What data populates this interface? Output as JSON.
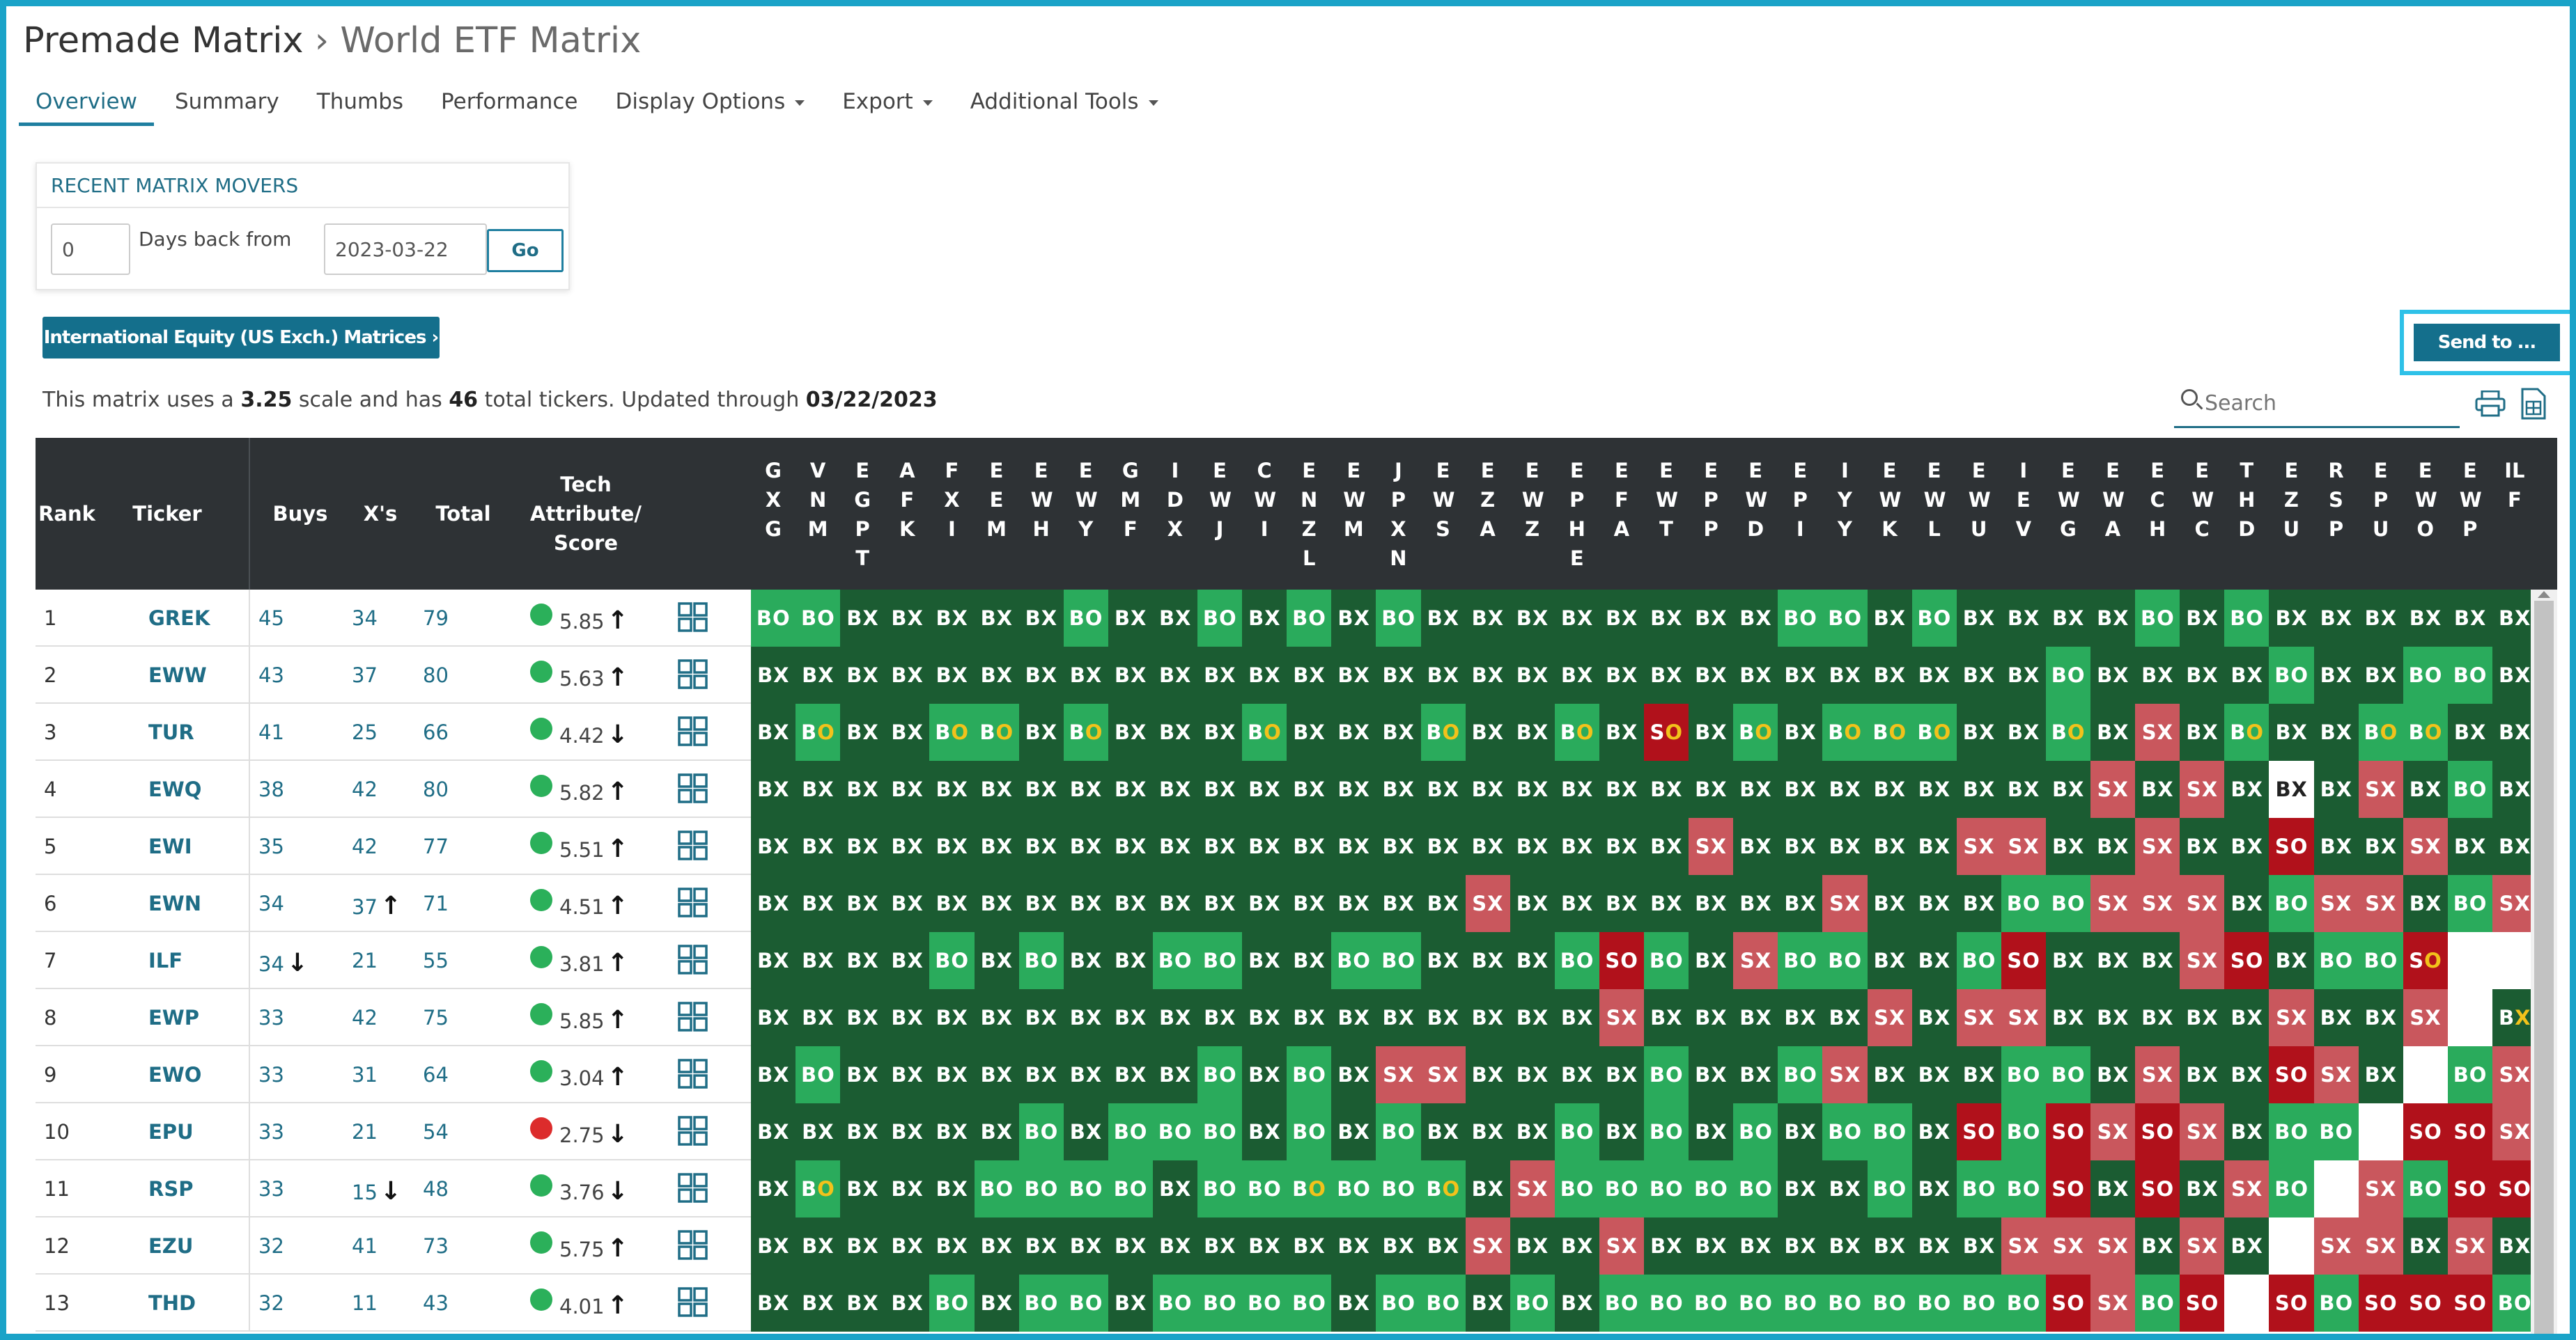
{
  "breadcrumb": {
    "parent": "Premade Matrix",
    "sep": "›",
    "current": "World ETF Matrix"
  },
  "tabs": [
    {
      "label": "Overview",
      "active": true,
      "dropdown": false
    },
    {
      "label": "Summary",
      "active": false,
      "dropdown": false
    },
    {
      "label": "Thumbs",
      "active": false,
      "dropdown": false
    },
    {
      "label": "Performance",
      "active": false,
      "dropdown": false
    },
    {
      "label": "Display Options",
      "active": false,
      "dropdown": true
    },
    {
      "label": "Export",
      "active": false,
      "dropdown": true
    },
    {
      "label": "Additional Tools",
      "active": false,
      "dropdown": true
    }
  ],
  "movers": {
    "title": "RECENT MATRIX MOVERS",
    "days_value": "0",
    "days_label": "Days back from",
    "date_value": "2023-03-22",
    "go_label": "Go"
  },
  "intl_button": "International Equity (US Exch.) Matrices ›",
  "send_button": "Send to ...",
  "info": {
    "p1": "This matrix uses a ",
    "scale": "3.25",
    "p2": " scale and has ",
    "tickers": "46",
    "p3": " total tickers. Updated through ",
    "date": "03/22/2023"
  },
  "search_placeholder": "Search",
  "headers": {
    "rank": "Rank",
    "ticker": "Ticker",
    "buys": "Buys",
    "xs": "X's",
    "total": "Total",
    "tech": "Tech Attribute/ Score"
  },
  "colors": {
    "BX": "#1b5c32",
    "BO": "#2aab5c",
    "SX": "#c9575d",
    "SO": "#b1111b",
    "EMPTY": "#ffffff",
    "up_dot": "#2bb05a",
    "down_dot": "#dc2c2c",
    "header_bg": "#2e3235",
    "accent": "#1f6d86"
  },
  "columns": [
    "GXG",
    "VNM",
    "EGPT",
    "AFK",
    "FXI",
    "EEM",
    "EWH",
    "EWY",
    "GMF",
    "IDX",
    "EWJ",
    "CWI",
    "ENZL",
    "EWM",
    "JPXN",
    "EWS",
    "EZA",
    "EWZ",
    "EPHE",
    "EFA",
    "EWT",
    "EPP",
    "EWD",
    "EPI",
    "IYY",
    "EWK",
    "EWL",
    "EWU",
    "IEV",
    "EWG",
    "EWA",
    "ECH",
    "EWC",
    "THD",
    "EZU",
    "RSP",
    "EPU",
    "EWO",
    "EWP",
    "ILF"
  ],
  "rows": [
    {
      "rank": "1",
      "ticker": "GREK",
      "buys": "45",
      "buys_arrow": "",
      "xs": "34",
      "xs_arrow": "",
      "total": "79",
      "dot": "up_dot",
      "score": "5.85",
      "score_arrow": "up",
      "cells": [
        "BO",
        "BO",
        "BX",
        "BX",
        "BX",
        "BX",
        "BX",
        "BO",
        "BX",
        "BX",
        "BO",
        "BX",
        "BO",
        "BX",
        "BO",
        "BX",
        "BX",
        "BX",
        "BX",
        "BX",
        "BX",
        "BX",
        "BX",
        "BO",
        "BO",
        "BX",
        "BO",
        "BX",
        "BX",
        "BX",
        "BX",
        "BO",
        "BX",
        "BO",
        "BX",
        "BX",
        "BX",
        "BX",
        "BX",
        "BX"
      ]
    },
    {
      "rank": "2",
      "ticker": "EWW",
      "buys": "43",
      "buys_arrow": "",
      "xs": "37",
      "xs_arrow": "",
      "total": "80",
      "dot": "up_dot",
      "score": "5.63",
      "score_arrow": "up",
      "cells": [
        "BX",
        "BX",
        "BX",
        "BX",
        "BX",
        "BX",
        "BX",
        "BX",
        "BX",
        "BX",
        "BX",
        "BX",
        "BX",
        "BX",
        "BX",
        "BX",
        "BX",
        "BX",
        "BX",
        "BX",
        "BX",
        "BX",
        "BX",
        "BX",
        "BX",
        "BX",
        "BX",
        "BX",
        "BX",
        "BO",
        "BX",
        "BX",
        "BX",
        "BX",
        "BO",
        "BX",
        "BX",
        "BO",
        "BO",
        "BX"
      ]
    },
    {
      "rank": "3",
      "ticker": "TUR",
      "buys": "41",
      "buys_arrow": "",
      "xs": "25",
      "xs_arrow": "",
      "total": "66",
      "dot": "up_dot",
      "score": "4.42",
      "score_arrow": "down",
      "cells": [
        "BX",
        "BO",
        "BX",
        "BX",
        "BO",
        "BO",
        "BX",
        "BO",
        "BX",
        "BX",
        "BX",
        "BO",
        "BX",
        "BX",
        "BX",
        "BO",
        "BX",
        "BX",
        "BO",
        "BX",
        "SO",
        "BX",
        "BO",
        "BX",
        "BO",
        "BO",
        "BO",
        "BX",
        "BX",
        "BO",
        "BX",
        "SX",
        "BX",
        "BO",
        "BX",
        "BX",
        "BO",
        "BO",
        "BX",
        "BX"
      ]
    },
    {
      "rank": "4",
      "ticker": "EWQ",
      "buys": "38",
      "buys_arrow": "",
      "xs": "42",
      "xs_arrow": "",
      "total": "80",
      "dot": "up_dot",
      "score": "5.82",
      "score_arrow": "up",
      "cells": [
        "BX",
        "BX",
        "BX",
        "BX",
        "BX",
        "BX",
        "BX",
        "BX",
        "BX",
        "BX",
        "BX",
        "BX",
        "BX",
        "BX",
        "BX",
        "BX",
        "BX",
        "BX",
        "BX",
        "BX",
        "BX",
        "BX",
        "BX",
        "BX",
        "BX",
        "BX",
        "BX",
        "BX",
        "BX",
        "BX",
        "SX",
        "BX",
        "SX",
        "BX",
        "EMPTY",
        "BX",
        "SX",
        "BX",
        "BO",
        "BX"
      ]
    },
    {
      "rank": "5",
      "ticker": "EWI",
      "buys": "35",
      "buys_arrow": "",
      "xs": "42",
      "xs_arrow": "",
      "total": "77",
      "dot": "up_dot",
      "score": "5.51",
      "score_arrow": "up",
      "cells": [
        "BX",
        "BX",
        "BX",
        "BX",
        "BX",
        "BX",
        "BX",
        "BX",
        "BX",
        "BX",
        "BX",
        "BX",
        "BX",
        "BX",
        "BX",
        "BX",
        "BX",
        "BX",
        "BX",
        "BX",
        "BX",
        "SX",
        "BX",
        "BX",
        "BX",
        "BX",
        "BX",
        "SX",
        "SX",
        "BX",
        "BX",
        "SX",
        "BX",
        "BX",
        "SO",
        "BX",
        "BX",
        "SX",
        "BX",
        "BX"
      ]
    },
    {
      "rank": "6",
      "ticker": "EWN",
      "buys": "34",
      "buys_arrow": "",
      "xs": "37",
      "xs_arrow": "up",
      "total": "71",
      "dot": "up_dot",
      "score": "4.51",
      "score_arrow": "up",
      "cells": [
        "BX",
        "BX",
        "BX",
        "BX",
        "BX",
        "BX",
        "BX",
        "BX",
        "BX",
        "BX",
        "BX",
        "BX",
        "BX",
        "BX",
        "BX",
        "BX",
        "SX",
        "BX",
        "BX",
        "BX",
        "BX",
        "BX",
        "BX",
        "BX",
        "SX",
        "BX",
        "BX",
        "BX",
        "BO",
        "BO",
        "SX",
        "SX",
        "SX",
        "BX",
        "BO",
        "SX",
        "SX",
        "BX",
        "BO",
        "SX"
      ]
    },
    {
      "rank": "7",
      "ticker": "ILF",
      "buys": "34",
      "buys_arrow": "down",
      "xs": "21",
      "xs_arrow": "",
      "total": "55",
      "dot": "up_dot",
      "score": "3.81",
      "score_arrow": "up",
      "cells": [
        "BX",
        "BX",
        "BX",
        "BX",
        "BO",
        "BX",
        "BO",
        "BX",
        "BX",
        "BO",
        "BO",
        "BX",
        "BX",
        "BO",
        "BO",
        "BX",
        "BX",
        "BX",
        "BO",
        "SO",
        "BO",
        "BX",
        "SX",
        "BO",
        "BO",
        "BX",
        "BX",
        "BO",
        "SO",
        "BX",
        "BX",
        "BX",
        "SX",
        "SO",
        "BX",
        "BO",
        "BO",
        "SO",
        "EMPTY",
        "EMPTY"
      ]
    },
    {
      "rank": "8",
      "ticker": "EWP",
      "buys": "33",
      "buys_arrow": "",
      "xs": "42",
      "xs_arrow": "",
      "total": "75",
      "dot": "up_dot",
      "score": "5.85",
      "score_arrow": "up",
      "cells": [
        "BX",
        "BX",
        "BX",
        "BX",
        "BX",
        "BX",
        "BX",
        "BX",
        "BX",
        "BX",
        "BX",
        "BX",
        "BX",
        "BX",
        "BX",
        "BX",
        "BX",
        "BX",
        "BX",
        "SX",
        "BX",
        "BX",
        "BX",
        "BX",
        "BX",
        "SX",
        "BX",
        "SX",
        "SX",
        "BX",
        "BX",
        "BX",
        "BX",
        "BX",
        "SX",
        "BX",
        "BX",
        "SX",
        "EMPTY",
        "BX"
      ]
    },
    {
      "rank": "9",
      "ticker": "EWO",
      "buys": "33",
      "buys_arrow": "",
      "xs": "31",
      "xs_arrow": "",
      "total": "64",
      "dot": "up_dot",
      "score": "3.04",
      "score_arrow": "up",
      "cells": [
        "BX",
        "BO",
        "BX",
        "BX",
        "BX",
        "BX",
        "BX",
        "BX",
        "BX",
        "BX",
        "BO",
        "BX",
        "BO",
        "BX",
        "SX",
        "SX",
        "BX",
        "BX",
        "BX",
        "BX",
        "BO",
        "BX",
        "BX",
        "BO",
        "SX",
        "BX",
        "BX",
        "BX",
        "BO",
        "BO",
        "BX",
        "SX",
        "BX",
        "BX",
        "SO",
        "SX",
        "BX",
        "EMPTY",
        "BO",
        "SX"
      ]
    },
    {
      "rank": "10",
      "ticker": "EPU",
      "buys": "33",
      "buys_arrow": "",
      "xs": "21",
      "xs_arrow": "",
      "total": "54",
      "dot": "down_dot",
      "score": "2.75",
      "score_arrow": "down",
      "cells": [
        "BX",
        "BX",
        "BX",
        "BX",
        "BX",
        "BX",
        "BO",
        "BX",
        "BO",
        "BO",
        "BO",
        "BX",
        "BO",
        "BX",
        "BO",
        "BX",
        "BX",
        "BX",
        "BO",
        "BX",
        "BO",
        "BX",
        "BO",
        "BX",
        "BO",
        "BO",
        "BX",
        "SO",
        "BO",
        "SO",
        "SX",
        "SO",
        "SX",
        "BX",
        "BO",
        "BO",
        "EMPTY",
        "SO",
        "SO",
        "SX"
      ]
    },
    {
      "rank": "11",
      "ticker": "RSP",
      "buys": "33",
      "buys_arrow": "",
      "xs": "15",
      "xs_arrow": "down",
      "total": "48",
      "dot": "up_dot",
      "score": "3.76",
      "score_arrow": "down",
      "cells": [
        "BX",
        "BO",
        "BX",
        "BX",
        "BX",
        "BO",
        "BO",
        "BO",
        "BO",
        "BX",
        "BO",
        "BO",
        "BO",
        "BO",
        "BO",
        "BO",
        "BX",
        "SX",
        "BO",
        "BO",
        "BO",
        "BO",
        "BO",
        "BX",
        "BX",
        "BO",
        "BX",
        "BO",
        "BO",
        "SO",
        "BX",
        "SO",
        "BX",
        "SX",
        "BO",
        "EMPTY",
        "SX",
        "BO",
        "SO",
        "SO"
      ]
    },
    {
      "rank": "12",
      "ticker": "EZU",
      "buys": "32",
      "buys_arrow": "",
      "xs": "41",
      "xs_arrow": "",
      "total": "73",
      "dot": "up_dot",
      "score": "5.75",
      "score_arrow": "up",
      "cells": [
        "BX",
        "BX",
        "BX",
        "BX",
        "BX",
        "BX",
        "BX",
        "BX",
        "BX",
        "BX",
        "BX",
        "BX",
        "BX",
        "BX",
        "BX",
        "BX",
        "SX",
        "BX",
        "BX",
        "SX",
        "BX",
        "BX",
        "BX",
        "BX",
        "BX",
        "BX",
        "BX",
        "BX",
        "SX",
        "SX",
        "SX",
        "BX",
        "SX",
        "BX",
        "EMPTY",
        "SX",
        "SX",
        "BX",
        "SX",
        "BX"
      ]
    },
    {
      "rank": "13",
      "ticker": "THD",
      "buys": "32",
      "buys_arrow": "",
      "xs": "11",
      "xs_arrow": "",
      "total": "43",
      "dot": "up_dot",
      "score": "4.01",
      "score_arrow": "up",
      "cells": [
        "BX",
        "BX",
        "BX",
        "BX",
        "BO",
        "BX",
        "BO",
        "BO",
        "BX",
        "BO",
        "BO",
        "BO",
        "BO",
        "BX",
        "BO",
        "BO",
        "BX",
        "BO",
        "BX",
        "BO",
        "BO",
        "BO",
        "BO",
        "BO",
        "BO",
        "BO",
        "BO",
        "BO",
        "BO",
        "SO",
        "SX",
        "BO",
        "SO",
        "EMPTY",
        "SO",
        "BO",
        "SO",
        "SO",
        "SO",
        "BO"
      ]
    }
  ],
  "yellow_o": [
    [
      2,
      1
    ],
    [
      2,
      4
    ],
    [
      2,
      5
    ],
    [
      2,
      7
    ],
    [
      2,
      11
    ],
    [
      2,
      15
    ],
    [
      2,
      18
    ],
    [
      2,
      20
    ],
    [
      2,
      22
    ],
    [
      2,
      24
    ],
    [
      2,
      25
    ],
    [
      2,
      26
    ],
    [
      2,
      29
    ],
    [
      2,
      33
    ],
    [
      2,
      36
    ],
    [
      2,
      37
    ],
    [
      6,
      37
    ],
    [
      7,
      39
    ],
    [
      10,
      1
    ],
    [
      10,
      12
    ],
    [
      10,
      15
    ]
  ]
}
